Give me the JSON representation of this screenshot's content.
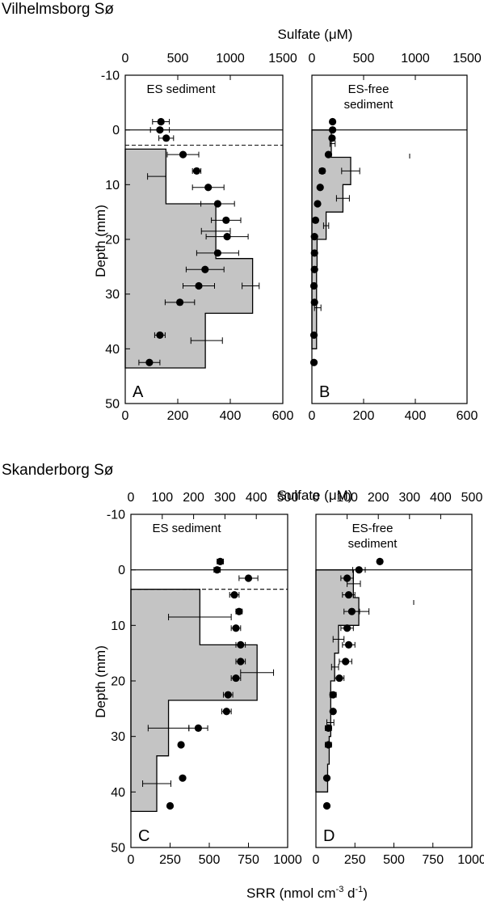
{
  "sites": [
    {
      "id": "vilhelmsborg",
      "title": "Vilhelmsborg Sø"
    },
    {
      "id": "skanderborg",
      "title": "Skanderborg Sø"
    }
  ],
  "axis_titles": {
    "sulfate": "Sulfate (μM)",
    "depth": "Depth (mm)",
    "srr_main": "SRR (nmol cm",
    "srr_sup1": "-3",
    "srr_mid": " d",
    "srr_sup2": "-1",
    "srr_end": ")"
  },
  "chart_data": [
    {
      "type": "bar",
      "panel": "A",
      "title": "ES sediment",
      "site": "Vilhelmsborg Sø",
      "ylabel": "Depth (mm)",
      "ylim": [
        -10,
        50
      ],
      "yticks": [
        -10,
        0,
        10,
        20,
        30,
        40,
        50
      ],
      "srr_xlim": [
        0,
        600
      ],
      "srr_xticks": [
        0,
        200,
        400,
        600
      ],
      "sulfate_xlim": [
        0,
        1500
      ],
      "sulfate_xticks": [
        0,
        500,
        1000,
        1500
      ],
      "surface_depth": 0,
      "dashed_depth": 2.8,
      "srr_profile": [
        {
          "top": 3.5,
          "bottom": 13.5,
          "value": 155
        },
        {
          "top": 13.5,
          "bottom": 23.5,
          "value": 345
        },
        {
          "top": 23.5,
          "bottom": 33.5,
          "value": 485
        },
        {
          "top": 33.5,
          "bottom": 43.5,
          "value": 305
        }
      ],
      "srr_errors": [
        {
          "depth": 8.5,
          "low": 85,
          "high": 155
        },
        {
          "depth": 18.5,
          "low": 290,
          "high": 400
        },
        {
          "depth": 28.5,
          "low": 445,
          "high": 510
        },
        {
          "depth": 38.5,
          "low": 250,
          "high": 370
        }
      ],
      "sulfate": [
        {
          "depth": -1.5,
          "value": 340,
          "err": 80
        },
        {
          "depth": 0,
          "value": 330,
          "err": 90
        },
        {
          "depth": 1.5,
          "value": 390,
          "err": 70
        },
        {
          "depth": 4.5,
          "value": 550,
          "err": 150
        },
        {
          "depth": 7.5,
          "value": 680,
          "err": 40
        },
        {
          "depth": 10.5,
          "value": 790,
          "err": 150
        },
        {
          "depth": 13.5,
          "value": 880,
          "err": 160
        },
        {
          "depth": 16.5,
          "value": 960,
          "err": 140
        },
        {
          "depth": 19.5,
          "value": 970,
          "err": 200
        },
        {
          "depth": 22.5,
          "value": 880,
          "err": 200
        },
        {
          "depth": 25.5,
          "value": 760,
          "err": 180
        },
        {
          "depth": 28.5,
          "value": 700,
          "err": 150
        },
        {
          "depth": 31.5,
          "value": 520,
          "err": 140
        },
        {
          "depth": 37.5,
          "value": 330,
          "err": 50
        },
        {
          "depth": 42.5,
          "value": 230,
          "err": 100
        }
      ]
    },
    {
      "type": "bar",
      "panel": "B",
      "title": "ES-free",
      "title2": "sediment",
      "site": "Vilhelmsborg Sø",
      "ylim": [
        -10,
        50
      ],
      "srr_xlim": [
        0,
        600
      ],
      "srr_xticks": [
        0,
        200,
        400,
        600
      ],
      "sulfate_xlim": [
        0,
        1500
      ],
      "sulfate_xticks": [
        0,
        500,
        1000,
        1500
      ],
      "surface_depth": 0,
      "srr_profile": [
        {
          "top": 0,
          "bottom": 5,
          "value": 75
        },
        {
          "top": 5,
          "bottom": 10,
          "value": 150
        },
        {
          "top": 10,
          "bottom": 15,
          "value": 120
        },
        {
          "top": 15,
          "bottom": 20,
          "value": 55
        },
        {
          "top": 20,
          "bottom": 25,
          "value": 20
        },
        {
          "top": 25,
          "bottom": 30,
          "value": 18
        },
        {
          "top": 30,
          "bottom": 35,
          "value": 18
        },
        {
          "top": 35,
          "bottom": 40,
          "value": 18
        }
      ],
      "srr_errors": [
        {
          "depth": 2.5,
          "low": 70,
          "high": 90
        },
        {
          "depth": 7.5,
          "low": 115,
          "high": 185
        },
        {
          "depth": 12.5,
          "low": 95,
          "high": 145
        },
        {
          "depth": 17.5,
          "low": 45,
          "high": 65
        },
        {
          "depth": 32.5,
          "low": 10,
          "high": 35
        }
      ],
      "sulfate": [
        {
          "depth": -1.5,
          "value": 200,
          "err": 10
        },
        {
          "depth": 0,
          "value": 200,
          "err": 15
        },
        {
          "depth": 1.5,
          "value": 195,
          "err": 15
        },
        {
          "depth": 4.5,
          "value": 160,
          "err": 20
        },
        {
          "depth": 7.5,
          "value": 100,
          "err": 25
        },
        {
          "depth": 10.5,
          "value": 80,
          "err": 15
        },
        {
          "depth": 13.5,
          "value": 55,
          "err": 10
        },
        {
          "depth": 16.5,
          "value": 35,
          "err": 10
        },
        {
          "depth": 19.5,
          "value": 25,
          "err": 5
        },
        {
          "depth": 22.5,
          "value": 25,
          "err": 5
        },
        {
          "depth": 25.5,
          "value": 25,
          "err": 5
        },
        {
          "depth": 28.5,
          "value": 20,
          "err": 5
        },
        {
          "depth": 31.5,
          "value": 25,
          "err": 5
        },
        {
          "depth": 37.5,
          "value": 20,
          "err": 5
        },
        {
          "depth": 42.5,
          "value": 20,
          "err": 5
        }
      ]
    },
    {
      "type": "bar",
      "panel": "C",
      "title": "ES sediment",
      "site": "Skanderborg Sø",
      "ylabel": "Depth (mm)",
      "ylim": [
        -10,
        50
      ],
      "yticks": [
        -10,
        0,
        10,
        20,
        30,
        40,
        50
      ],
      "srr_xlim": [
        0,
        1000
      ],
      "srr_xticks": [
        0,
        250,
        500,
        750,
        1000
      ],
      "sulfate_xlim": [
        0,
        500
      ],
      "sulfate_xticks": [
        0,
        100,
        200,
        300,
        400,
        500
      ],
      "surface_depth": 0,
      "dashed_depth": 3.5,
      "srr_profile": [
        {
          "top": 3.5,
          "bottom": 13.5,
          "value": 440
        },
        {
          "top": 13.5,
          "bottom": 23.5,
          "value": 805
        },
        {
          "top": 23.5,
          "bottom": 33.5,
          "value": 240
        },
        {
          "top": 33.5,
          "bottom": 43.5,
          "value": 165
        }
      ],
      "srr_errors": [
        {
          "depth": 8.5,
          "low": 240,
          "high": 640
        },
        {
          "depth": 18.5,
          "low": 700,
          "high": 910
        },
        {
          "depth": 28.5,
          "low": 110,
          "high": 370
        },
        {
          "depth": 38.5,
          "low": 75,
          "high": 255
        }
      ],
      "sulfate": [
        {
          "depth": -1.5,
          "value": 285,
          "err": 10
        },
        {
          "depth": 0,
          "value": 275,
          "err": 10
        },
        {
          "depth": 1.5,
          "value": 375,
          "err": 30
        },
        {
          "depth": 4.5,
          "value": 330,
          "err": 15
        },
        {
          "depth": 7.5,
          "value": 345,
          "err": 10
        },
        {
          "depth": 10.5,
          "value": 335,
          "err": 15
        },
        {
          "depth": 13.5,
          "value": 350,
          "err": 15
        },
        {
          "depth": 16.5,
          "value": 350,
          "err": 15
        },
        {
          "depth": 19.5,
          "value": 335,
          "err": 15
        },
        {
          "depth": 22.5,
          "value": 310,
          "err": 15
        },
        {
          "depth": 25.5,
          "value": 305,
          "err": 15
        },
        {
          "depth": 28.5,
          "value": 215,
          "err": 30
        },
        {
          "depth": 31.5,
          "value": 160,
          "err": 5
        },
        {
          "depth": 37.5,
          "value": 165,
          "err": 5
        },
        {
          "depth": 42.5,
          "value": 125,
          "err": 5
        }
      ]
    },
    {
      "type": "bar",
      "panel": "D",
      "title": "ES-free",
      "title2": "sediment",
      "site": "Skanderborg Sø",
      "ylim": [
        -10,
        50
      ],
      "srr_xlim": [
        0,
        1000
      ],
      "srr_xticks": [
        0,
        250,
        500,
        750,
        1000
      ],
      "sulfate_xlim": [
        0,
        500
      ],
      "sulfate_xticks": [
        0,
        100,
        200,
        300,
        400,
        500
      ],
      "surface_depth": 0,
      "srr_profile": [
        {
          "top": 0,
          "bottom": 5,
          "value": 240
        },
        {
          "top": 5,
          "bottom": 10,
          "value": 275
        },
        {
          "top": 10,
          "bottom": 15,
          "value": 145
        },
        {
          "top": 15,
          "bottom": 20,
          "value": 120
        },
        {
          "top": 20,
          "bottom": 25,
          "value": 95
        },
        {
          "top": 25,
          "bottom": 30,
          "value": 95
        },
        {
          "top": 30,
          "bottom": 35,
          "value": 85
        },
        {
          "top": 35,
          "bottom": 40,
          "value": 75
        }
      ],
      "srr_errors": [
        {
          "depth": 2.5,
          "low": 200,
          "high": 285
        },
        {
          "depth": 7.5,
          "low": 240,
          "high": 340
        },
        {
          "depth": 12.5,
          "low": 110,
          "high": 180
        },
        {
          "depth": 17.5,
          "low": 100,
          "high": 145
        },
        {
          "depth": 27.5,
          "low": 70,
          "high": 115
        }
      ],
      "sulfate": [
        {
          "depth": -1.5,
          "value": 205,
          "err": 5
        },
        {
          "depth": 0,
          "value": 138,
          "err": 20
        },
        {
          "depth": 1.5,
          "value": 100,
          "err": 20
        },
        {
          "depth": 4.5,
          "value": 105,
          "err": 20
        },
        {
          "depth": 7.5,
          "value": 115,
          "err": 25
        },
        {
          "depth": 10.5,
          "value": 100,
          "err": 20
        },
        {
          "depth": 13.5,
          "value": 105,
          "err": 20
        },
        {
          "depth": 16.5,
          "value": 95,
          "err": 20
        },
        {
          "depth": 19.5,
          "value": 75,
          "err": 15
        },
        {
          "depth": 22.5,
          "value": 55,
          "err": 10
        },
        {
          "depth": 25.5,
          "value": 55,
          "err": 5
        },
        {
          "depth": 28.5,
          "value": 40,
          "err": 10
        },
        {
          "depth": 31.5,
          "value": 40,
          "err": 10
        },
        {
          "depth": 37.5,
          "value": 35,
          "err": 5
        },
        {
          "depth": 42.5,
          "value": 35,
          "err": 5
        }
      ]
    }
  ]
}
